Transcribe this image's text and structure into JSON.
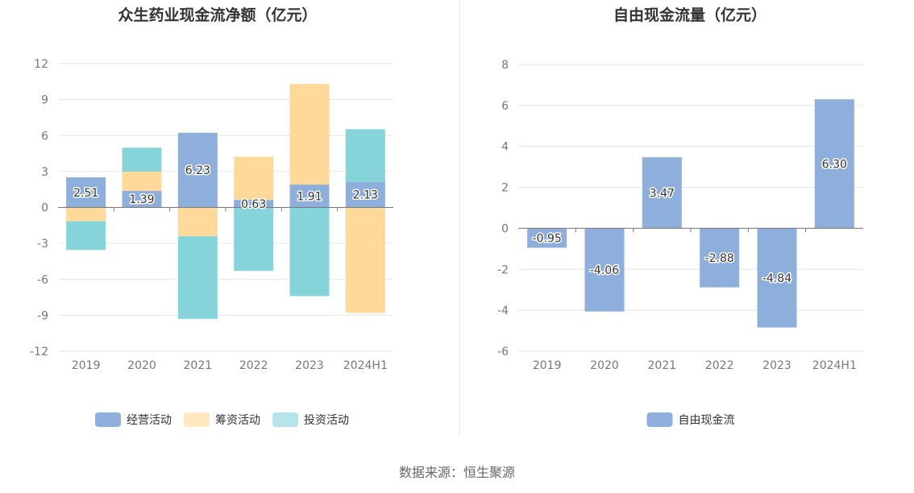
{
  "source": "数据来源：恒生聚源",
  "chart_data": [
    {
      "type": "bar",
      "stacked": true,
      "title": "众生药业现金流净额（亿元）",
      "categories": [
        "2019",
        "2020",
        "2021",
        "2022",
        "2023",
        "2024H1"
      ],
      "ylim": [
        -12,
        12
      ],
      "yticks": [
        12,
        9,
        6,
        3,
        0,
        -3,
        -6,
        -9,
        -12
      ],
      "grid": true,
      "legend_position": "bottom",
      "series": [
        {
          "name": "经营活动",
          "color": "#8eaedc",
          "values": [
            2.51,
            1.39,
            6.23,
            0.63,
            1.91,
            2.13
          ]
        },
        {
          "name": "筹资活动",
          "color": "#ffd99a",
          "values": [
            -1.15,
            1.6,
            -2.4,
            3.6,
            8.4,
            -8.8
          ]
        },
        {
          "name": "投资活动",
          "color": "#85d4da",
          "values": [
            -2.4,
            2.0,
            -6.9,
            -5.3,
            -7.4,
            4.4
          ]
        }
      ],
      "data_labels": [
        "2.51",
        "1.39",
        "6.23",
        "0.63",
        "1.91",
        "2.13"
      ]
    },
    {
      "type": "bar",
      "title": "自由现金流量（亿元）",
      "categories": [
        "2019",
        "2020",
        "2021",
        "2022",
        "2023",
        "2024H1"
      ],
      "ylim": [
        -6,
        8
      ],
      "yticks": [
        8,
        6,
        4,
        2,
        0,
        -2,
        -4,
        -6
      ],
      "grid": true,
      "legend_position": "bottom",
      "series": [
        {
          "name": "自由现金流",
          "color": "#8eaedc",
          "values": [
            -0.95,
            -4.06,
            3.47,
            -2.88,
            -4.84,
            6.3
          ]
        }
      ],
      "data_labels": [
        "-0.95",
        "-4.06",
        "3.47",
        "-2.88",
        "-4.84",
        "6.30"
      ]
    }
  ]
}
